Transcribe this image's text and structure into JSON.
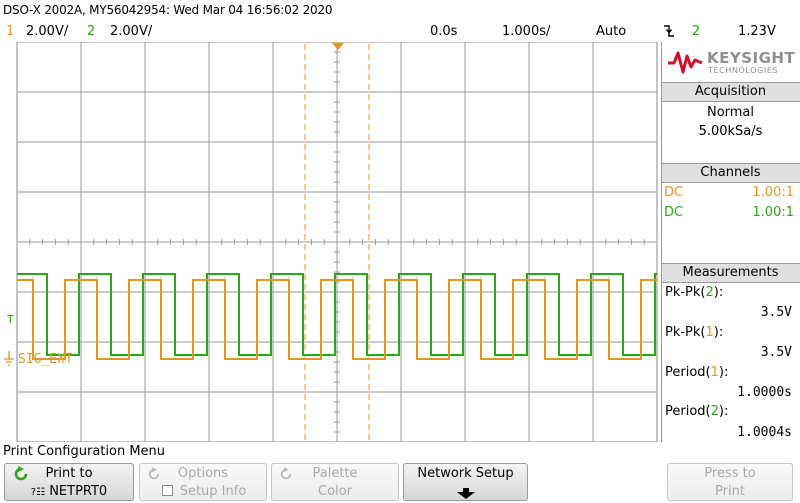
{
  "header": {
    "title": "DSO-X 2002A, MY56042954: Wed Mar 04 16:56:02 2020",
    "ch1_number": "1",
    "ch1_scale": "2.00V/",
    "ch2_number": "2",
    "ch2_scale": "2.00V/",
    "time_position": "0.0s",
    "time_scale": "1.000s/",
    "trigger_mode": "Auto",
    "trigger_slope_icon": "falling-edge-icon",
    "trigger_source": "2",
    "trigger_level": "1.23V"
  },
  "scope": {
    "trigger_marker": "T",
    "ground_marker": "ground-icon",
    "ch_label": "SIG_EXT",
    "colors": {
      "ch1": "#e8951d",
      "ch2": "#2ea418",
      "cursor": "#e8951d",
      "grid": "#9a9a9a"
    }
  },
  "panel": {
    "brand": "KEYSIGHT",
    "brand_sub": "TECHNOLOGIES",
    "acquisition_title": "Acquisition",
    "acquisition_mode": "Normal",
    "sample_rate": "5.00kSa/s",
    "channels_title": "Channels",
    "ch1_coupling": "DC",
    "ch1_probe": "1.00:1",
    "ch2_coupling": "DC",
    "ch2_probe": "1.00:1",
    "measurements_title": "Measurements",
    "m1_label": "Pk-Pk(",
    "m1_ch": "2",
    "m1_close": "):",
    "m1_value": "3.5V",
    "m2_label": "Pk-Pk(",
    "m2_ch": "1",
    "m2_close": "):",
    "m2_value": "3.5V",
    "m3_label": "Period(",
    "m3_ch": "1",
    "m3_close": "):",
    "m3_value": "1.0000s",
    "m4_label": "Period(",
    "m4_ch": "2",
    "m4_close": "):",
    "m4_value": "1.0004s"
  },
  "menu": {
    "title": "Print Configuration Menu",
    "print_to_line1": "Print to",
    "print_to_line2": "NETPRT0",
    "options_line1": "Options",
    "options_line2": "Setup Info",
    "palette_line1": "Palette",
    "palette_line2": "Color",
    "network_setup": "Network Setup",
    "press_to_print_line1": "Press to",
    "press_to_print_line2": "Print"
  }
}
